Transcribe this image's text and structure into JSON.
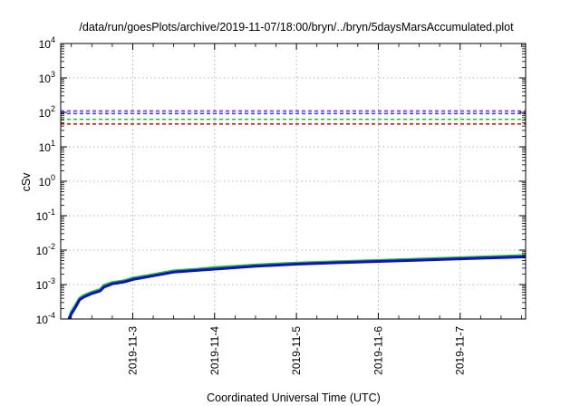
{
  "chart_data": {
    "type": "line",
    "title": "/data/run/goesPlots/archive/2019-11-07/18:00/bryn/../bryn/5daysMarsAccumulated.plot",
    "xlabel": "Coordinated Universal Time (UTC)",
    "ylabel": "cSv",
    "y_scale": "log",
    "ylim": [
      0.0001,
      10000
    ],
    "xlim": [
      2.12,
      7.8
    ],
    "x_ticks": [
      {
        "value": 3,
        "label": "2019-11-3"
      },
      {
        "value": 4,
        "label": "2019-11-4"
      },
      {
        "value": 5,
        "label": "2019-11-5"
      },
      {
        "value": 6,
        "label": "2019-11-6"
      },
      {
        "value": 7,
        "label": "2019-11-7"
      }
    ],
    "y_ticks": [
      {
        "value": 0.0001,
        "base": "10",
        "exp": "-4"
      },
      {
        "value": 0.001,
        "base": "10",
        "exp": "-3"
      },
      {
        "value": 0.01,
        "base": "10",
        "exp": "-2"
      },
      {
        "value": 0.1,
        "base": "10",
        "exp": "-1"
      },
      {
        "value": 1,
        "base": "10",
        "exp": "0"
      },
      {
        "value": 10,
        "base": "10",
        "exp": "1"
      },
      {
        "value": 100,
        "base": "10",
        "exp": "2"
      },
      {
        "value": 1000,
        "base": "10",
        "exp": "3"
      },
      {
        "value": 10000,
        "base": "10",
        "exp": "4"
      }
    ],
    "grid": true,
    "reference_lines": [
      {
        "y": 110,
        "color": "#8a2be2",
        "style": "dashed"
      },
      {
        "y": 92,
        "color": "#3a3aff",
        "style": "dashed"
      },
      {
        "y": 63,
        "color": "#22c022",
        "style": "dashed"
      },
      {
        "y": 46,
        "color": "#e01010",
        "style": "dashed"
      }
    ],
    "series": [
      {
        "color": "#22c022",
        "x": [
          2.22,
          2.25,
          2.3,
          2.35,
          2.4,
          2.5,
          2.6,
          2.65,
          2.75,
          2.9,
          3.0,
          3.2,
          3.5,
          3.8,
          4.0,
          4.5,
          5.0,
          5.5,
          6.0,
          6.5,
          7.0,
          7.5,
          7.8
        ],
        "y": [
          9e-05,
          0.00016,
          0.00025,
          0.0004,
          0.00048,
          0.0006,
          0.00072,
          0.00095,
          0.00115,
          0.0013,
          0.00155,
          0.00185,
          0.0025,
          0.0028,
          0.0031,
          0.0037,
          0.0042,
          0.0046,
          0.005,
          0.0055,
          0.006,
          0.0066,
          0.007
        ]
      },
      {
        "color": "#1010c8",
        "x": [
          2.22,
          2.25,
          2.3,
          2.35,
          2.4,
          2.5,
          2.6,
          2.65,
          2.75,
          2.9,
          3.0,
          3.2,
          3.5,
          3.8,
          4.0,
          4.5,
          5.0,
          5.5,
          6.0,
          6.5,
          7.0,
          7.5,
          7.8
        ],
        "y": [
          8e-05,
          0.00014,
          0.00022,
          0.00036,
          0.00043,
          0.00055,
          0.00065,
          0.00085,
          0.00105,
          0.0012,
          0.0014,
          0.0017,
          0.0023,
          0.0026,
          0.0028,
          0.0034,
          0.0039,
          0.0043,
          0.0047,
          0.0051,
          0.0056,
          0.0061,
          0.0064
        ]
      }
    ]
  }
}
